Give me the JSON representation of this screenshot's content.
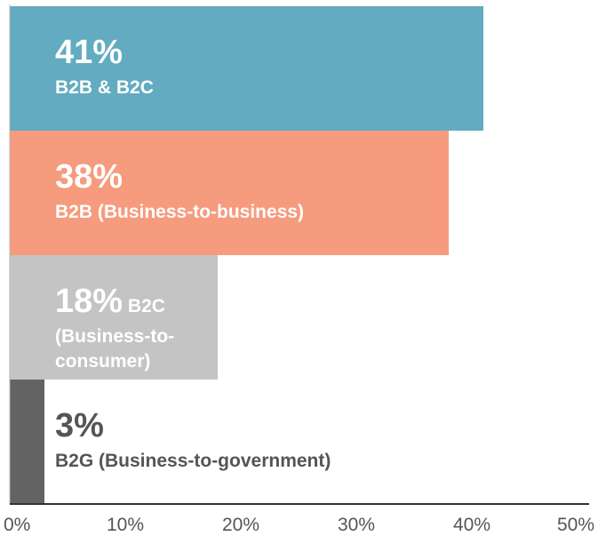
{
  "chart_data": {
    "type": "bar",
    "orientation": "horizontal",
    "title": "",
    "xlabel": "",
    "ylabel": "",
    "xlim": [
      0,
      50
    ],
    "grid": false,
    "x_ticks": [
      "0%",
      "10%",
      "20%",
      "30%",
      "40%",
      "50%"
    ],
    "categories": [
      "B2B & B2C",
      "B2B (Business-to-business)",
      "B2C (Business-to-consumer)",
      "B2G (Business-to-government)"
    ],
    "values": [
      41,
      38,
      18,
      3
    ],
    "colors": [
      "#62abc0",
      "#f69b7d",
      "#c4c4c4",
      "#636363"
    ],
    "data_labels": [
      {
        "pct": "41%",
        "name_lines": [
          "B2B & B2C"
        ]
      },
      {
        "pct": "38%",
        "name_lines": [
          "B2B (Business-to-business)"
        ]
      },
      {
        "pct": "18%",
        "pct_suffix": " B2C",
        "name_lines": [
          "(Business-to-",
          "consumer)"
        ]
      },
      {
        "pct": "3%",
        "name_lines": [
          "B2G (Business-to-government)"
        ]
      }
    ]
  }
}
